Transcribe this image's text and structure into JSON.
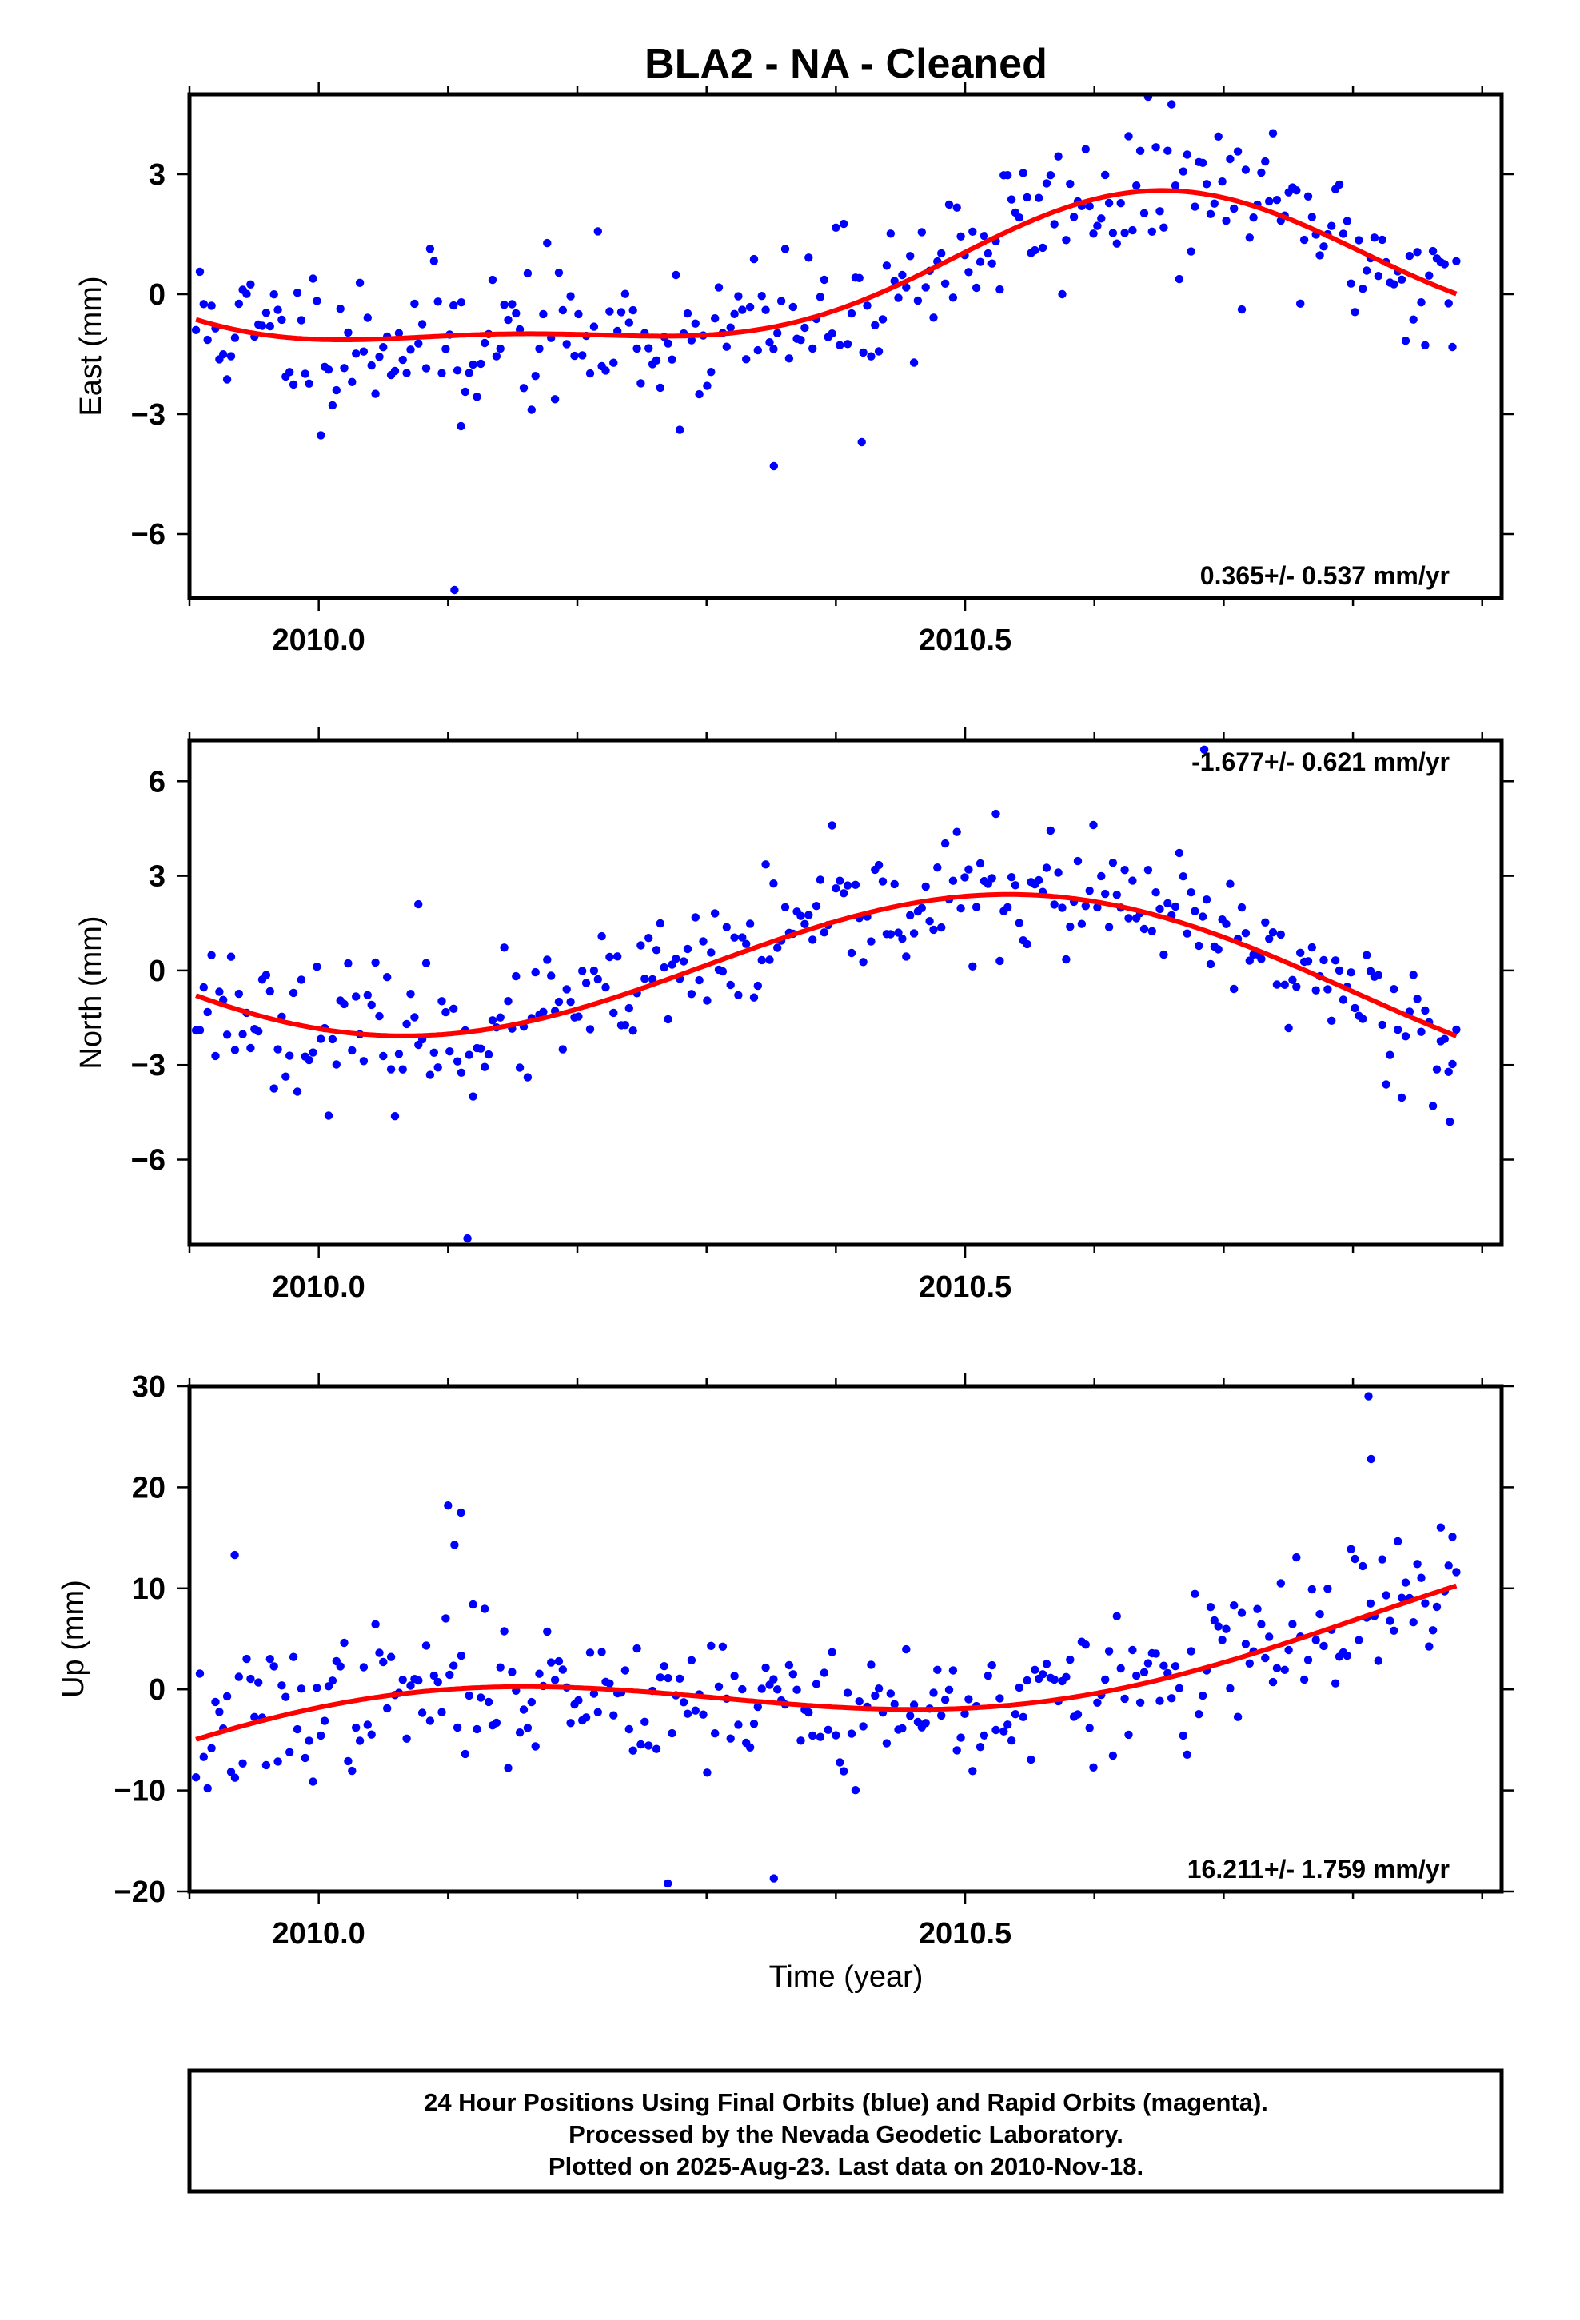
{
  "colors": {
    "data_point": "#0000ff",
    "fit_line": "#ff0000",
    "frame": "#000000"
  },
  "chart_data": {
    "type": "scatter",
    "title": "BLA2  - NA - Cleaned",
    "xlabel": "Time (year)",
    "xlim": [
      2009.9,
      2010.915
    ],
    "x_ticks": [
      {
        "value": 2010.0,
        "label": "2010.0"
      },
      {
        "value": 2010.5,
        "label": "2010.5"
      }
    ],
    "x_minor_ticks": [
      2009.9,
      2010.1,
      2010.2,
      2010.3,
      2010.4,
      2010.6,
      2010.7,
      2010.8,
      2010.9
    ],
    "x_start": 2009.905,
    "x_end": 2010.88,
    "n_points": 324,
    "panels": [
      {
        "name": "east",
        "ylabel": "East (mm)",
        "ylim": [
          -7.6,
          5.0
        ],
        "y_ticks": [
          {
            "value": 3,
            "label": "3"
          },
          {
            "value": 0,
            "label": "0"
          },
          {
            "value": -3,
            "label": "−3"
          },
          {
            "value": -6,
            "label": "−6"
          }
        ],
        "rate_label": "0.365+/- 0.537 mm/yr",
        "rate_position": "bottom-right",
        "fit": {
          "offset": 0.2,
          "trend": 0.365,
          "t0": 2010.4,
          "amp_annual": 1.7,
          "phase_annual": 2010.65,
          "amp_semiannual": 0.6,
          "phase_semiannual": 2010.15
        },
        "scatter_sd": 0.95,
        "outliers": [
          [
            2010.105,
            -7.4
          ],
          [
            2010.11,
            -3.3
          ],
          [
            2010.42,
            -3.7
          ],
          [
            2010.352,
            -4.3
          ]
        ],
        "seed": 11
      },
      {
        "name": "north",
        "ylabel": "North (mm)",
        "ylim": [
          -8.7,
          7.3
        ],
        "y_ticks": [
          {
            "value": 6,
            "label": "6"
          },
          {
            "value": 3,
            "label": "3"
          },
          {
            "value": 0,
            "label": "0"
          },
          {
            "value": -3,
            "label": "−3"
          },
          {
            "value": -6,
            "label": "−6"
          }
        ],
        "rate_label": "-1.677+/- 0.621 mm/yr",
        "rate_position": "top-right",
        "fit": {
          "offset": 0.0,
          "trend": -1.677,
          "t0": 2010.4,
          "amp_annual": 2.65,
          "phase_annual": 2010.55,
          "amp_semiannual": 0.0,
          "phase_semiannual": 2010.0
        },
        "scatter_sd": 1.0,
        "outliers": [
          [
            2010.115,
            -8.5
          ],
          [
            2010.685,
            7.0
          ],
          [
            2010.077,
            2.1
          ],
          [
            2010.875,
            -4.8
          ]
        ],
        "seed": 23
      },
      {
        "name": "up",
        "ylabel": "Up (mm)",
        "ylim": [
          -20,
          30
        ],
        "y_ticks": [
          {
            "value": 30,
            "label": "30"
          },
          {
            "value": 20,
            "label": "20"
          },
          {
            "value": 10,
            "label": "10"
          },
          {
            "value": 0,
            "label": "0"
          },
          {
            "value": -10,
            "label": "−10"
          },
          {
            "value": -20,
            "label": "−20"
          }
        ],
        "rate_label": "16.211+/- 1.759 mm/yr",
        "rate_position": "bottom-right",
        "fit": {
          "offset": 0.6,
          "trend": 16.211,
          "t0": 2010.4,
          "amp_annual": 4.4,
          "phase_annual": 2010.06,
          "amp_semiannual": 0.0,
          "phase_semiannual": 2010.0
        },
        "scatter_sd": 3.4,
        "outliers": [
          [
            2010.812,
            29.0
          ],
          [
            2010.814,
            22.8
          ],
          [
            2010.1,
            18.2
          ],
          [
            2010.11,
            17.5
          ],
          [
            2010.105,
            14.3
          ],
          [
            2009.935,
            13.3
          ],
          [
            2010.27,
            -19.2
          ],
          [
            2010.352,
            -18.7
          ]
        ],
        "seed": 37
      }
    ]
  },
  "footer": {
    "line1": "24 Hour Positions Using Final Orbits (blue) and Rapid Orbits (magenta).",
    "line2": "Processed by the Nevada Geodetic Laboratory.",
    "line3": "Plotted on 2025-Aug-23. Last data on 2010-Nov-18."
  }
}
